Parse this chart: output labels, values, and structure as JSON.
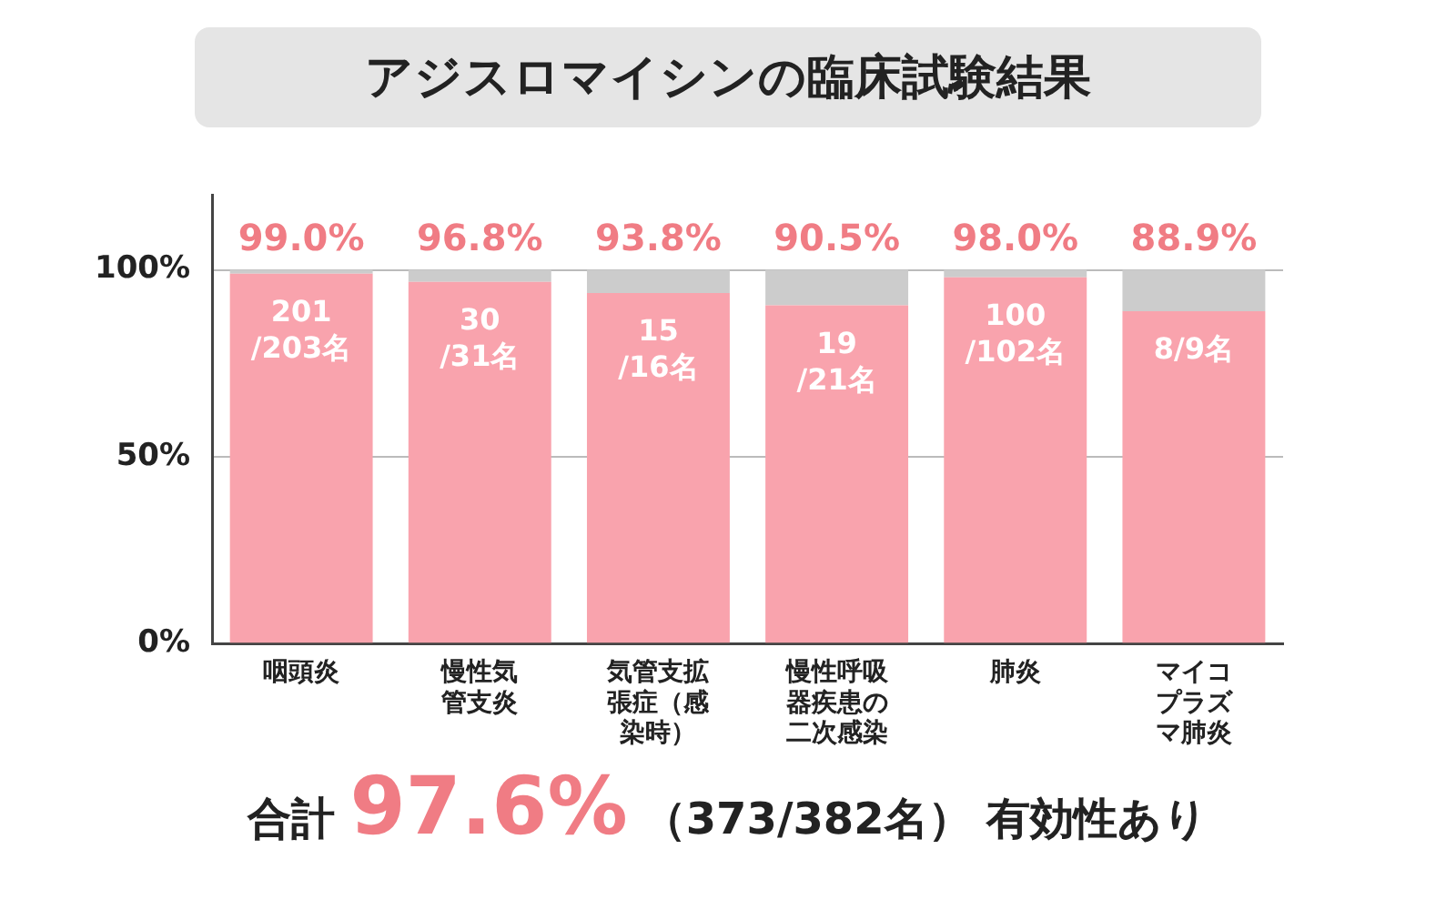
{
  "chart_data": {
    "type": "bar",
    "title": "アジスロマイシンの臨床試験結果",
    "categories": [
      "咽頭炎",
      "慢性気管支炎",
      "気管支拡張症（感染時）",
      "慢性呼吸器疾患の二次感染",
      "肺炎",
      "マイコプラズマ肺炎"
    ],
    "series": [
      {
        "color": "#f9a3ad",
        "values": [
          99.0,
          96.8,
          93.8,
          90.5,
          98.0,
          88.9
        ],
        "value_labels": [
          "99.0%",
          "96.8%",
          "93.8%",
          "90.5%",
          "98.0%",
          "88.9%"
        ]
      },
      {
        "color": "#cccccc",
        "values": [
          1.0,
          3.2,
          6.2,
          9.5,
          2.0,
          11.1
        ]
      }
    ],
    "stacked": true,
    "ylim": [
      0,
      120
    ],
    "yticks": [
      {
        "value": 0,
        "label": "0%"
      },
      {
        "value": 50,
        "label": "50%"
      },
      {
        "value": 100,
        "label": "100%"
      }
    ],
    "grid": "y",
    "legend": false,
    "annotations": [
      {
        "text": "201\n/203名",
        "x": "咽頭炎",
        "y": 99.0
      },
      {
        "text": "30\n/31名",
        "x": "慢性気管支炎",
        "y": 96.8
      },
      {
        "text": "15\n/16名",
        "x": "気管支拡張症（感染時）",
        "y": 93.8
      },
      {
        "text": "19\n/21名",
        "x": "慢性呼吸器疾患の二次感染",
        "y": 90.5
      },
      {
        "text": "100\n/102名",
        "x": "肺炎",
        "y": 98.0
      },
      {
        "text": "8/9名",
        "x": "マイコプラズマ肺炎",
        "y": 88.9
      },
      "合計",
      "97.6%",
      "（373/382名）",
      "有効性あり"
    ]
  }
}
